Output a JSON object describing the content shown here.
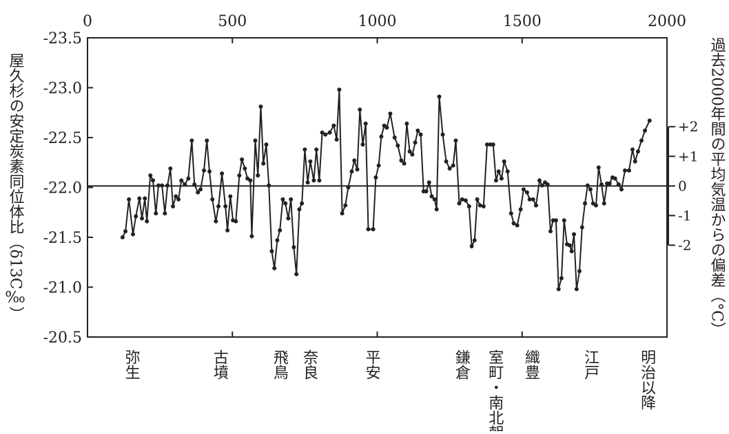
{
  "chart_data": {
    "type": "line",
    "y_label": "屋久杉の安定炭素同位体比（δ13C‰）",
    "y2_label": "過去2000年間の平均気温からの偏差（°C）",
    "xlim": [
      0,
      2000
    ],
    "xticks": [
      0,
      500,
      1000,
      1500,
      2000
    ],
    "ylim": [
      -23.5,
      -20.5
    ],
    "y_inverted": true,
    "yticks": [
      {
        "value": -23.5,
        "label": "-23.5"
      },
      {
        "value": -23,
        "label": "-23.0"
      },
      {
        "value": -22.5,
        "label": "-22.5"
      },
      {
        "value": -22,
        "label": "-22.0"
      },
      {
        "value": -21.5,
        "label": "-21.5"
      },
      {
        "value": -21,
        "label": "-21.0"
      },
      {
        "value": -20.5,
        "label": "-20.5"
      }
    ],
    "y2lim": [
      -5.1,
      5.0
    ],
    "y2ticks": [
      {
        "value": 2,
        "label": "+2"
      },
      {
        "value": 1,
        "label": "+1"
      },
      0,
      -1,
      -2
    ],
    "zero_line": true,
    "periods": [
      {
        "label": "弥生",
        "x": 150
      },
      {
        "label": "古墳",
        "x": 455
      },
      {
        "label": "飛鳥",
        "x": 662
      },
      {
        "label": "奈良",
        "x": 765
      },
      {
        "label": "平安",
        "x": 980
      },
      {
        "label": "鎌倉",
        "x": 1290
      },
      {
        "label": "室町・南北朝",
        "x": 1405
      },
      {
        "label": "織豊",
        "x": 1530
      },
      {
        "label": "江戸",
        "x": 1735
      },
      {
        "label": "明治以降",
        "x": 1930
      }
    ],
    "series": [
      {
        "color": "#222222",
        "x": [
          121,
          131,
          143,
          157,
          167,
          179,
          188,
          198,
          205,
          217,
          226,
          236,
          245,
          257,
          267,
          276,
          286,
          295,
          305,
          314,
          324,
          336,
          348,
          360,
          369,
          381,
          390,
          402,
          412,
          421,
          431,
          443,
          452,
          464,
          476,
          483,
          493,
          502,
          512,
          524,
          533,
          543,
          552,
          562,
          567,
          579,
          588,
          598,
          607,
          617,
          626,
          636,
          645,
          655,
          664,
          674,
          683,
          693,
          702,
          712,
          721,
          731,
          740,
          750,
          760,
          769,
          781,
          790,
          800,
          810,
          821,
          836,
          850,
          860,
          869,
          879,
          890,
          900,
          912,
          921,
          931,
          940,
          950,
          960,
          969,
          986,
          995,
          1005,
          1014,
          1024,
          1033,
          1045,
          1060,
          1071,
          1083,
          1093,
          1102,
          1112,
          1121,
          1131,
          1140,
          1150,
          1160,
          1169,
          1179,
          1188,
          1198,
          1205,
          1214,
          1226,
          1238,
          1250,
          1262,
          1271,
          1283,
          1293,
          1305,
          1317,
          1326,
          1336,
          1345,
          1355,
          1367,
          1379,
          1390,
          1400,
          1410,
          1419,
          1429,
          1438,
          1450,
          1462,
          1471,
          1483,
          1495,
          1505,
          1517,
          1526,
          1538,
          1548,
          1560,
          1569,
          1579,
          1588,
          1598,
          1607,
          1617,
          1626,
          1636,
          1645,
          1655,
          1664,
          1671,
          1679,
          1688,
          1698,
          1707,
          1717,
          1726,
          1736,
          1745,
          1755,
          1764,
          1774,
          1783,
          1793,
          1802,
          1812,
          1821,
          1833,
          1843,
          1855,
          1869,
          1881,
          1890,
          1900,
          1912,
          1924,
          1940
        ],
        "values": [
          -21.5,
          -21.56,
          -21.88,
          -21.53,
          -21.71,
          -21.89,
          -21.69,
          -21.89,
          -21.66,
          -22.12,
          -22.07,
          -21.74,
          -22.02,
          -22.02,
          -21.74,
          -22.02,
          -22.19,
          -21.81,
          -21.91,
          -21.88,
          -22.07,
          -22.03,
          -22.09,
          -22.47,
          -22.03,
          -21.95,
          -21.98,
          -22.17,
          -22.47,
          -22.16,
          -21.88,
          -21.66,
          -21.81,
          -22.14,
          -21.81,
          -21.57,
          -21.91,
          -21.67,
          -21.66,
          -22.12,
          -22.28,
          -22.19,
          -22.09,
          -22.07,
          -21.51,
          -22.47,
          -22.12,
          -22.81,
          -22.24,
          -22.43,
          -22.02,
          -21.36,
          -21.19,
          -21.47,
          -21.57,
          -21.88,
          -21.84,
          -21.69,
          -21.88,
          -21.4,
          -21.13,
          -21.78,
          -21.84,
          -22.38,
          -22.05,
          -22.26,
          -22.07,
          -22.38,
          -22.07,
          -22.55,
          -22.53,
          -22.55,
          -22.62,
          -22.48,
          -22.98,
          -21.74,
          -21.82,
          -22.0,
          -22.16,
          -22.27,
          -22.18,
          -22.78,
          -22.43,
          -22.64,
          -21.58,
          -21.58,
          -22.1,
          -22.22,
          -22.51,
          -22.62,
          -22.6,
          -22.74,
          -22.5,
          -22.42,
          -22.27,
          -22.24,
          -22.64,
          -22.36,
          -22.33,
          -22.45,
          -22.57,
          -22.53,
          -21.96,
          -21.96,
          -22.05,
          -21.91,
          -21.88,
          -21.78,
          -22.91,
          -22.53,
          -22.26,
          -22.19,
          -22.22,
          -22.47,
          -21.84,
          -21.88,
          -21.87,
          -21.81,
          -21.41,
          -21.47,
          -21.88,
          -21.82,
          -21.81,
          -22.43,
          -22.43,
          -22.43,
          -22.07,
          -22.16,
          -22.09,
          -22.26,
          -22.16,
          -21.74,
          -21.64,
          -21.62,
          -21.78,
          -21.98,
          -21.95,
          -21.88,
          -21.88,
          -21.82,
          -22.07,
          -22.02,
          -22.05,
          -22.03,
          -21.56,
          -21.67,
          -21.67,
          -20.98,
          -21.09,
          -21.67,
          -21.43,
          -21.42,
          -21.36,
          -21.53,
          -20.98,
          -21.16,
          -21.6,
          -21.84,
          -22.02,
          -21.98,
          -21.84,
          -21.82,
          -22.2,
          -22.03,
          -21.84,
          -22.04,
          -22.04,
          -22.1,
          -22.09,
          -22.03,
          -21.98,
          -22.17,
          -22.17,
          -22.38,
          -22.26,
          -22.36,
          -22.47,
          -22.57,
          -22.67
        ]
      }
    ]
  }
}
